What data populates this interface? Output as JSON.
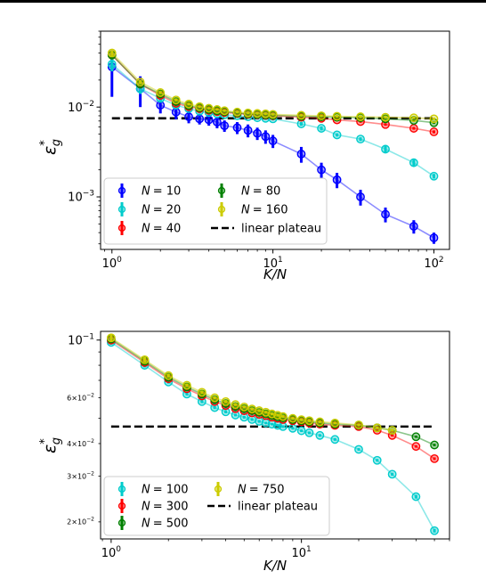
{
  "chart_data": [
    {
      "type": "line",
      "xlabel": "K/N",
      "ylabel": "ε*_g",
      "xscale": "log",
      "yscale": "log",
      "xlim": [
        0.85,
        125
      ],
      "ylim": [
        0.00026,
        0.07
      ],
      "x_ticks": [
        {
          "value": 1,
          "base": "10",
          "exp": "0"
        },
        {
          "value": 10,
          "base": "10",
          "exp": "1"
        },
        {
          "value": 100,
          "base": "10",
          "exp": "2"
        }
      ],
      "y_ticks": [
        {
          "value": 0.001,
          "base": "10",
          "exp": "−3"
        },
        {
          "value": 0.01,
          "base": "10",
          "exp": "−2"
        }
      ],
      "grid": false,
      "legend": {
        "position": "lower-left",
        "columns": 2,
        "entries": [
          {
            "label_var": "N",
            "label_value": "= 10"
          },
          {
            "label_var": "N",
            "label_value": "= 20"
          },
          {
            "label_var": "N",
            "label_value": "= 40"
          },
          {
            "label_var": "N",
            "label_value": "= 80"
          },
          {
            "label_var": "N",
            "label_value": "= 160"
          },
          {
            "label_text": "linear plateau"
          }
        ]
      },
      "plateau": {
        "value": 0.0075,
        "x_range": [
          1,
          100
        ],
        "color": "#000000"
      },
      "series": [
        {
          "name": "N = 10",
          "color": "#0000ff",
          "x": [
            1,
            1.5,
            2,
            2.5,
            3,
            3.5,
            4,
            4.5,
            5,
            6,
            7,
            8,
            9,
            10,
            15,
            20,
            25,
            35,
            50,
            75,
            100
          ],
          "y": [
            0.028,
            0.016,
            0.0105,
            0.0088,
            0.0078,
            0.0074,
            0.0072,
            0.0068,
            0.0062,
            0.0059,
            0.0055,
            0.0051,
            0.0047,
            0.0042,
            0.003,
            0.002,
            0.00155,
            0.001,
            0.00064,
            0.00047,
            0.00035
          ],
          "err": [
            0.015,
            0.006,
            0.002,
            0.0015,
            0.0012,
            0.001,
            0.001,
            0.001,
            0.0009,
            0.0009,
            0.0009,
            0.0008,
            0.0008,
            0.0007,
            0.0006,
            0.0004,
            0.0003,
            0.0002,
            0.00012,
            8e-05,
            5e-05
          ]
        },
        {
          "name": "N = 20",
          "color": "#00cccc",
          "x": [
            1,
            1.5,
            2,
            2.5,
            3,
            3.5,
            4,
            4.5,
            5,
            6,
            7,
            8,
            9,
            10,
            15,
            20,
            25,
            35,
            50,
            75,
            100
          ],
          "y": [
            0.03,
            0.016,
            0.0125,
            0.0105,
            0.0096,
            0.009,
            0.0087,
            0.0084,
            0.0082,
            0.008,
            0.0078,
            0.0076,
            0.0075,
            0.0074,
            0.0065,
            0.0058,
            0.0049,
            0.0044,
            0.0034,
            0.0024,
            0.0017
          ],
          "err": [
            0.005,
            0.002,
            0.001,
            0.0008,
            0.0006,
            0.0005,
            0.0004,
            0.0004,
            0.0004,
            0.0003,
            0.0003,
            0.0003,
            0.0003,
            0.0003,
            0.0003,
            0.0003,
            0.0002,
            0.0002,
            0.0003,
            0.0002,
            0.0001
          ]
        },
        {
          "name": "N = 40",
          "color": "#ff0000",
          "x": [
            1,
            1.5,
            2,
            2.5,
            3,
            3.5,
            4,
            4.5,
            5,
            6,
            7,
            8,
            9,
            10,
            15,
            20,
            25,
            35,
            50,
            75,
            100
          ],
          "y": [
            0.038,
            0.018,
            0.0135,
            0.011,
            0.0101,
            0.0096,
            0.0092,
            0.0089,
            0.0087,
            0.0085,
            0.0083,
            0.0082,
            0.0081,
            0.008,
            0.0077,
            0.0075,
            0.0072,
            0.0069,
            0.0064,
            0.0058,
            0.0053
          ],
          "err": [
            0.004,
            0.0015,
            0.0008,
            0.0005,
            0.0004,
            0.0003,
            0.0003,
            0.0003,
            0.0002,
            0.0002,
            0.0002,
            0.0002,
            0.0002,
            0.0002,
            0.0002,
            0.0002,
            0.0002,
            0.0002,
            0.0002,
            0.0002,
            0.0002
          ]
        },
        {
          "name": "N = 80",
          "color": "#008000",
          "x": [
            1,
            1.5,
            2,
            2.5,
            3,
            3.5,
            4,
            4.5,
            5,
            6,
            7,
            8,
            9,
            10,
            15,
            20,
            25,
            35,
            50,
            75,
            100
          ],
          "y": [
            0.038,
            0.018,
            0.014,
            0.0115,
            0.0104,
            0.0098,
            0.0094,
            0.0091,
            0.0089,
            0.0086,
            0.0084,
            0.0083,
            0.0082,
            0.0081,
            0.0079,
            0.0078,
            0.0077,
            0.0076,
            0.0074,
            0.0071,
            0.0067
          ],
          "err": [
            0.003,
            0.0012,
            0.0006,
            0.0004,
            0.0003,
            0.0003,
            0.0002,
            0.0002,
            0.0002,
            0.0002,
            0.0002,
            0.0002,
            0.0002,
            0.0002,
            0.0002,
            0.0002,
            0.0002,
            0.0002,
            0.0002,
            0.0002,
            0.0002
          ]
        },
        {
          "name": "N = 160",
          "color": "#cccc00",
          "x": [
            1,
            1.5,
            2,
            2.5,
            3,
            3.5,
            4,
            4.5,
            5,
            6,
            7,
            8,
            9,
            10,
            15,
            20,
            25,
            35,
            50,
            75,
            100
          ],
          "y": [
            0.04,
            0.019,
            0.0145,
            0.012,
            0.0108,
            0.0101,
            0.0097,
            0.0094,
            0.0091,
            0.0088,
            0.0086,
            0.0085,
            0.0084,
            0.0083,
            0.0081,
            0.008,
            0.0079,
            0.0078,
            0.0077,
            0.0076,
            0.0074
          ],
          "err": [
            0.003,
            0.001,
            0.0005,
            0.0004,
            0.0003,
            0.0002,
            0.0002,
            0.0002,
            0.0002,
            0.0002,
            0.0002,
            0.0002,
            0.0002,
            0.0002,
            0.0002,
            0.0002,
            0.0002,
            0.0002,
            0.0002,
            0.0002,
            0.0002
          ]
        }
      ]
    },
    {
      "type": "line",
      "xlabel": "K/N",
      "ylabel": "ε*_g",
      "xscale": "log",
      "yscale": "log",
      "xlim": [
        0.88,
        60
      ],
      "ylim": [
        0.0172,
        0.108
      ],
      "x_ticks": [
        {
          "value": 1,
          "base": "10",
          "exp": "0"
        },
        {
          "value": 10,
          "base": "10",
          "exp": "1"
        }
      ],
      "y_ticks": [
        {
          "value": 0.1,
          "base": "10",
          "exp": "−1",
          "major": true
        },
        {
          "value": 0.06,
          "base": "6×10",
          "exp": "−2",
          "major": false
        },
        {
          "value": 0.04,
          "base": "4×10",
          "exp": "−2",
          "major": false
        },
        {
          "value": 0.03,
          "base": "3×10",
          "exp": "−2",
          "major": false
        },
        {
          "value": 0.02,
          "base": "2×10",
          "exp": "−2",
          "major": false
        }
      ],
      "grid": false,
      "legend": {
        "position": "lower-left",
        "columns": 2,
        "entries": [
          {
            "label_var": "N",
            "label_value": "= 100"
          },
          {
            "label_var": "N",
            "label_value": "= 300"
          },
          {
            "label_var": "N",
            "label_value": "= 500"
          },
          {
            "label_var": "N",
            "label_value": "= 750"
          },
          {
            "label_text": "linear plateau"
          }
        ]
      },
      "plateau": {
        "value": 0.0465,
        "x_range": [
          1,
          50
        ],
        "color": "#000000"
      },
      "series": [
        {
          "name": "N = 100",
          "color": "#00cccc",
          "x": [
            1,
            1.5,
            2,
            2.5,
            3,
            3.5,
            4,
            4.5,
            5,
            5.5,
            6,
            6.5,
            7,
            7.5,
            8,
            9,
            10,
            11,
            12.5,
            15,
            20,
            25,
            30,
            40,
            50
          ],
          "y": [
            0.098,
            0.08,
            0.069,
            0.062,
            0.058,
            0.055,
            0.053,
            0.0515,
            0.0505,
            0.0495,
            0.0487,
            0.048,
            0.0475,
            0.047,
            0.0465,
            0.0458,
            0.0448,
            0.044,
            0.043,
            0.0415,
            0.038,
            0.0345,
            0.0305,
            0.025,
            0.0185
          ],
          "err": [
            0.002,
            0.0015,
            0.001,
            0.0008,
            0.0008,
            0.0007,
            0.0007,
            0.0006,
            0.0006,
            0.0006,
            0.0006,
            0.0005,
            0.0005,
            0.0005,
            0.0005,
            0.0005,
            0.0005,
            0.0005,
            0.0005,
            0.0005,
            0.0004,
            0.0004,
            0.0004,
            0.0004,
            0.0003
          ]
        },
        {
          "name": "N = 300",
          "color": "#ff0000",
          "x": [
            1,
            1.5,
            2,
            2.5,
            3,
            3.5,
            4,
            4.5,
            5,
            5.5,
            6,
            6.5,
            7,
            7.5,
            8,
            9,
            10,
            11,
            12.5,
            15,
            20,
            25,
            30,
            40,
            50
          ],
          "y": [
            0.1,
            0.082,
            0.071,
            0.065,
            0.061,
            0.058,
            0.056,
            0.0545,
            0.0535,
            0.0525,
            0.0518,
            0.0512,
            0.0505,
            0.05,
            0.0495,
            0.049,
            0.0485,
            0.048,
            0.0475,
            0.047,
            0.0465,
            0.045,
            0.043,
            0.039,
            0.035
          ],
          "err": [
            0.002,
            0.0015,
            0.001,
            0.0008,
            0.0008,
            0.0007,
            0.0007,
            0.0006,
            0.0006,
            0.0006,
            0.0006,
            0.0005,
            0.0005,
            0.0005,
            0.0005,
            0.0005,
            0.0005,
            0.0005,
            0.0005,
            0.0005,
            0.0004,
            0.0004,
            0.0004,
            0.0004,
            0.0004
          ]
        },
        {
          "name": "N = 500",
          "color": "#008000",
          "x": [
            1,
            1.5,
            2,
            2.5,
            3,
            3.5,
            4,
            4.5,
            5,
            5.5,
            6,
            6.5,
            7,
            7.5,
            8,
            9,
            10,
            11,
            12.5,
            15,
            20,
            25,
            30,
            40,
            50
          ],
          "y": [
            0.101,
            0.083,
            0.072,
            0.066,
            0.062,
            0.059,
            0.057,
            0.0555,
            0.0545,
            0.0535,
            0.0527,
            0.052,
            0.0513,
            0.0507,
            0.0502,
            0.0495,
            0.049,
            0.0485,
            0.048,
            0.0475,
            0.047,
            0.046,
            0.045,
            0.0425,
            0.0395
          ],
          "err": [
            0.002,
            0.0015,
            0.001,
            0.0008,
            0.0008,
            0.0007,
            0.0007,
            0.0006,
            0.0006,
            0.0006,
            0.0006,
            0.0005,
            0.0005,
            0.0005,
            0.0005,
            0.0005,
            0.0005,
            0.0005,
            0.0005,
            0.0005,
            0.0004,
            0.0004,
            0.0004,
            0.0004,
            0.0004
          ]
        },
        {
          "name": "N = 750",
          "color": "#cccc00",
          "x": [
            1,
            1.5,
            2,
            2.5,
            3,
            3.5,
            4,
            4.5,
            5,
            5.5,
            6,
            6.5,
            7,
            7.5,
            8,
            9,
            10,
            11,
            12.5,
            15,
            20,
            25,
            30
          ],
          "y": [
            0.102,
            0.084,
            0.073,
            0.067,
            0.063,
            0.06,
            0.058,
            0.0565,
            0.0553,
            0.0543,
            0.0535,
            0.0528,
            0.052,
            0.0514,
            0.0508,
            0.05,
            0.0494,
            0.049,
            0.0485,
            0.048,
            0.0472,
            0.046,
            0.045
          ],
          "err": [
            0.003,
            0.002,
            0.0012,
            0.001,
            0.0009,
            0.0008,
            0.0008,
            0.0007,
            0.0007,
            0.0007,
            0.0006,
            0.0006,
            0.0006,
            0.0006,
            0.0006,
            0.0006,
            0.0006,
            0.0006,
            0.0005,
            0.0005,
            0.0005,
            0.0005,
            0.0005
          ]
        }
      ]
    }
  ]
}
